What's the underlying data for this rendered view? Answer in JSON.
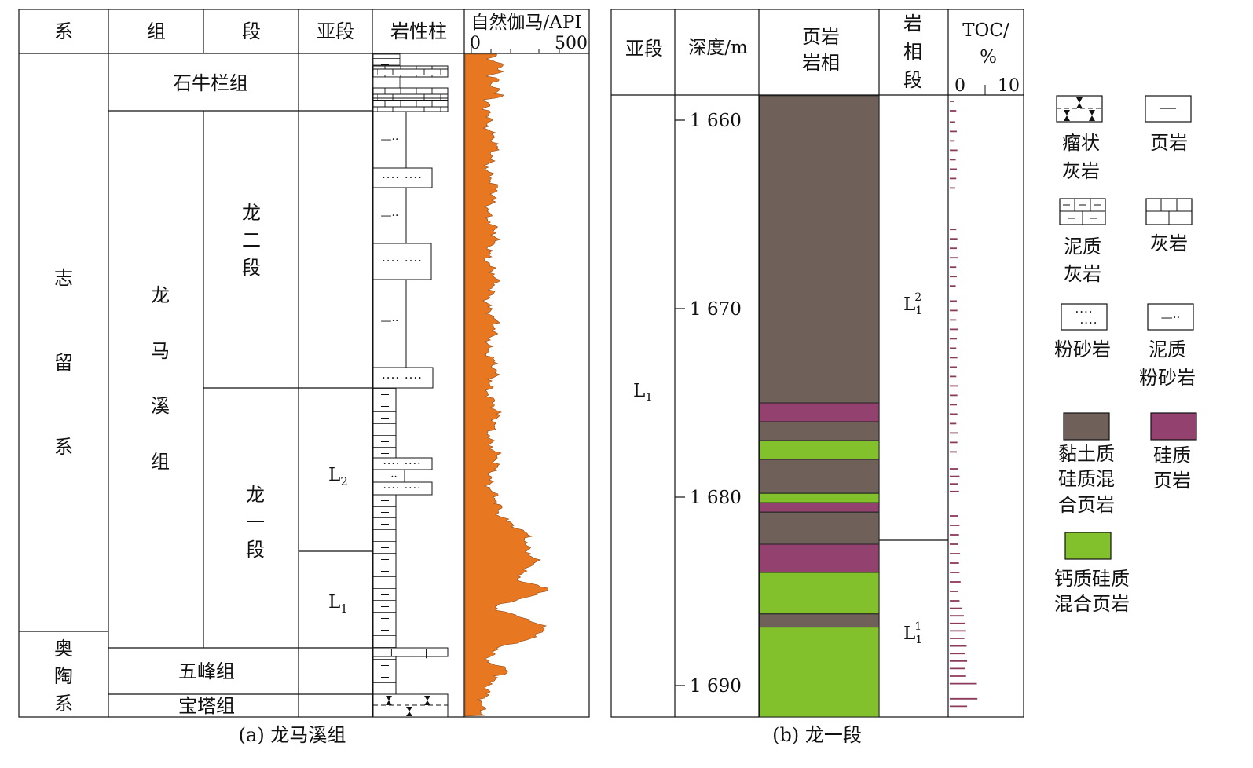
{
  "panel_a": {
    "headers": {
      "system": "系",
      "formation": "组",
      "member": "段",
      "submember": "亚段",
      "lithology": "岩性柱",
      "gamma": "自然伽马/API",
      "gamma_min": "0",
      "gamma_max": "500"
    },
    "systems": {
      "silurian": [
        "志",
        "留",
        "系"
      ],
      "ordovician": [
        "奥",
        "陶",
        "系"
      ]
    },
    "formations": {
      "shiniulan": "石牛栏组",
      "longmaxi": [
        "龙",
        "马",
        "溪",
        "组"
      ],
      "wufeng": "五峰组",
      "baota": "宝塔组"
    },
    "members": {
      "long2": [
        "龙",
        "二",
        "段"
      ],
      "long1": [
        "龙",
        "一",
        "段"
      ]
    },
    "submembers": {
      "l2": {
        "base": "L",
        "sub": "2"
      },
      "l1": {
        "base": "L",
        "sub": "1"
      }
    },
    "caption": "(a) 龙马溪组"
  },
  "panel_b": {
    "headers": {
      "submember": "亚段",
      "depth": "深度/m",
      "facies": [
        "页岩",
        "岩相"
      ],
      "facies_section": [
        "岩",
        "相",
        "段"
      ],
      "toc": "TOC/",
      "toc_unit": "%",
      "toc_min": "0",
      "toc_max": "10"
    },
    "submember": {
      "base": "L",
      "sub": "1"
    },
    "depth_ticks": [
      "1 660",
      "1 670",
      "1 680",
      "1 690"
    ],
    "facies_sections": {
      "upper": {
        "base": "L",
        "sub": "1",
        "sup": "2"
      },
      "lower": {
        "base": "L",
        "sub": "1",
        "sup": "1"
      }
    },
    "facies_layers": [
      {
        "type": "clay",
        "top": 1658.7,
        "base": 1675.0
      },
      {
        "type": "siliceous",
        "top": 1675.0,
        "base": 1676.0
      },
      {
        "type": "clay",
        "top": 1676.0,
        "base": 1677.0
      },
      {
        "type": "calcareous",
        "top": 1677.0,
        "base": 1678.0
      },
      {
        "type": "clay",
        "top": 1678.0,
        "base": 1679.8
      },
      {
        "type": "calcareous",
        "top": 1679.8,
        "base": 1680.3
      },
      {
        "type": "siliceous",
        "top": 1680.3,
        "base": 1680.8
      },
      {
        "type": "clay",
        "top": 1680.8,
        "base": 1682.5
      },
      {
        "type": "siliceous",
        "top": 1682.5,
        "base": 1684.0
      },
      {
        "type": "calcareous",
        "top": 1684.0,
        "base": 1686.2
      },
      {
        "type": "clay",
        "top": 1686.2,
        "base": 1686.9
      },
      {
        "type": "calcareous",
        "top": 1686.9,
        "base": 1691.7
      }
    ],
    "toc_samples": [
      {
        "depth": 1659.0,
        "toc": 0.8
      },
      {
        "depth": 1659.5,
        "toc": 1.2
      },
      {
        "depth": 1660.1,
        "toc": 1.0
      },
      {
        "depth": 1660.6,
        "toc": 1.3
      },
      {
        "depth": 1661.1,
        "toc": 0.9
      },
      {
        "depth": 1661.6,
        "toc": 1.4
      },
      {
        "depth": 1662.1,
        "toc": 1.1
      },
      {
        "depth": 1662.6,
        "toc": 1.3
      },
      {
        "depth": 1663.1,
        "toc": 1.2
      },
      {
        "depth": 1663.6,
        "toc": 1.0
      },
      {
        "depth": 1665.8,
        "toc": 1.2
      },
      {
        "depth": 1666.3,
        "toc": 1.4
      },
      {
        "depth": 1666.8,
        "toc": 1.3
      },
      {
        "depth": 1667.3,
        "toc": 1.5
      },
      {
        "depth": 1667.8,
        "toc": 1.2
      },
      {
        "depth": 1668.3,
        "toc": 1.3
      },
      {
        "depth": 1668.8,
        "toc": 1.1
      },
      {
        "depth": 1669.6,
        "toc": 1.3
      },
      {
        "depth": 1670.1,
        "toc": 1.4
      },
      {
        "depth": 1670.6,
        "toc": 1.2
      },
      {
        "depth": 1671.1,
        "toc": 1.5
      },
      {
        "depth": 1671.6,
        "toc": 1.3
      },
      {
        "depth": 1672.1,
        "toc": 1.2
      },
      {
        "depth": 1672.6,
        "toc": 1.4
      },
      {
        "depth": 1673.1,
        "toc": 1.3
      },
      {
        "depth": 1673.6,
        "toc": 1.2
      },
      {
        "depth": 1674.1,
        "toc": 1.5
      },
      {
        "depth": 1674.6,
        "toc": 1.4
      },
      {
        "depth": 1675.1,
        "toc": 1.3
      },
      {
        "depth": 1675.6,
        "toc": 1.4
      },
      {
        "depth": 1676.1,
        "toc": 1.2
      },
      {
        "depth": 1676.6,
        "toc": 1.5
      },
      {
        "depth": 1677.1,
        "toc": 1.4
      },
      {
        "depth": 1677.6,
        "toc": 1.3
      },
      {
        "depth": 1678.5,
        "toc": 1.6
      },
      {
        "depth": 1678.9,
        "toc": 1.8
      },
      {
        "depth": 1679.3,
        "toc": 1.5
      },
      {
        "depth": 1679.7,
        "toc": 1.7
      },
      {
        "depth": 1681.0,
        "toc": 1.6
      },
      {
        "depth": 1681.5,
        "toc": 1.8
      },
      {
        "depth": 1682.0,
        "toc": 1.7
      },
      {
        "depth": 1682.5,
        "toc": 1.5
      },
      {
        "depth": 1683.0,
        "toc": 1.9
      },
      {
        "depth": 1683.5,
        "toc": 1.7
      },
      {
        "depth": 1684.0,
        "toc": 1.8
      },
      {
        "depth": 1684.5,
        "toc": 2.0
      },
      {
        "depth": 1685.0,
        "toc": 1.6
      },
      {
        "depth": 1685.5,
        "toc": 1.8
      },
      {
        "depth": 1685.9,
        "toc": 2.3
      },
      {
        "depth": 1686.3,
        "toc": 2.6
      },
      {
        "depth": 1686.7,
        "toc": 2.9
      },
      {
        "depth": 1687.1,
        "toc": 3.0
      },
      {
        "depth": 1687.5,
        "toc": 2.7
      },
      {
        "depth": 1687.9,
        "toc": 3.1
      },
      {
        "depth": 1688.3,
        "toc": 2.9
      },
      {
        "depth": 1688.7,
        "toc": 3.2
      },
      {
        "depth": 1689.1,
        "toc": 2.8
      },
      {
        "depth": 1689.5,
        "toc": 3.0
      },
      {
        "depth": 1689.9,
        "toc": 5.0
      },
      {
        "depth": 1690.7,
        "toc": 5.1
      },
      {
        "depth": 1691.1,
        "toc": 3.2
      }
    ],
    "caption": "(b) 龙一段"
  },
  "legend": [
    {
      "type": "nodular_limestone",
      "label": [
        "瘤状",
        "灰岩"
      ]
    },
    {
      "type": "shale",
      "label": [
        "页岩"
      ]
    },
    {
      "type": "argillaceous_limestone",
      "label": [
        "泥质",
        "灰岩"
      ]
    },
    {
      "type": "limestone",
      "label": [
        "灰岩"
      ]
    },
    {
      "type": "siltstone",
      "label": [
        "粉砂岩"
      ]
    },
    {
      "type": "argillaceous_siltstone",
      "label": [
        "泥质",
        "粉砂岩"
      ]
    },
    {
      "type": "clay",
      "label": [
        "黏土质",
        "硅质混",
        "合页岩"
      ]
    },
    {
      "type": "siliceous",
      "label": [
        "硅质",
        "页岩"
      ]
    },
    {
      "type": "calcareous",
      "label": [
        "钙质硅质",
        "混合页岩"
      ]
    }
  ],
  "colors": {
    "gamma_fill": "#E87722",
    "clay": "#6F6159",
    "siliceous": "#93426F",
    "calcareous": "#82C12B",
    "toc_bar": "#8B3A5A"
  }
}
